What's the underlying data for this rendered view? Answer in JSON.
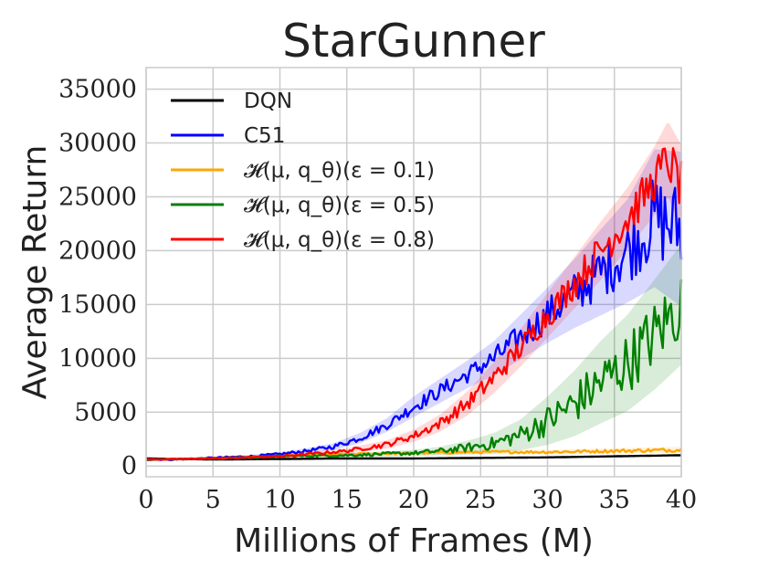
{
  "chart_data": {
    "type": "line",
    "title": "StarGunner",
    "xlabel": "Millions of Frames (M)",
    "ylabel": "Average Return",
    "xlim": [
      0,
      40
    ],
    "ylim": [
      -1000,
      37000
    ],
    "xticks": [
      0,
      5,
      10,
      15,
      20,
      25,
      30,
      35,
      40
    ],
    "yticks": [
      0,
      5000,
      10000,
      15000,
      20000,
      25000,
      30000,
      35000
    ],
    "grid": true,
    "legend_position": "top-left",
    "series": [
      {
        "name": "DQN",
        "color": "#000000",
        "x": [
          0,
          5,
          10,
          15,
          20,
          25,
          30,
          35,
          40
        ],
        "y": [
          700,
          600,
          650,
          700,
          700,
          750,
          800,
          900,
          1000
        ],
        "spread": [
          0,
          0,
          0,
          0,
          0,
          0,
          0,
          0,
          0
        ]
      },
      {
        "name": "C51",
        "color": "#0000ff",
        "x": [
          0,
          2,
          4,
          6,
          8,
          10,
          12,
          14,
          16,
          18,
          20,
          22,
          24,
          26,
          28,
          30,
          32,
          34,
          36,
          38,
          40
        ],
        "y": [
          600,
          600,
          700,
          800,
          900,
          1100,
          1400,
          1800,
          2600,
          3800,
          5500,
          7000,
          8500,
          10000,
          12000,
          14000,
          16000,
          18000,
          20000,
          23000,
          22000
        ],
        "spread": [
          50,
          50,
          60,
          80,
          100,
          120,
          150,
          200,
          300,
          400,
          600,
          700,
          800,
          1000,
          1300,
          1600,
          2000,
          2500,
          3000,
          4000,
          4500
        ]
      },
      {
        "name": "𝓗(μ, q_θ)(ε = 0.1)",
        "color": "#ffa500",
        "x": [
          0,
          5,
          10,
          15,
          20,
          25,
          30,
          35,
          40
        ],
        "y": [
          600,
          700,
          900,
          1100,
          1200,
          1300,
          1300,
          1400,
          1500
        ],
        "spread": [
          30,
          40,
          60,
          80,
          100,
          120,
          130,
          150,
          180
        ]
      },
      {
        "name": "𝓗(μ, q_θ)(ε = 0.5)",
        "color": "#008000",
        "x": [
          0,
          5,
          10,
          15,
          20,
          22,
          24,
          26,
          28,
          30,
          32,
          34,
          36,
          38,
          40
        ],
        "y": [
          600,
          700,
          900,
          1000,
          1200,
          1400,
          1700,
          2100,
          2900,
          4200,
          5800,
          7800,
          9600,
          12200,
          15000
        ],
        "spread": [
          30,
          50,
          80,
          120,
          180,
          250,
          400,
          600,
          900,
          1400,
          1900,
          2400,
          2800,
          3200,
          3500
        ]
      },
      {
        "name": "𝓗(μ, q_θ)(ε = 0.8)",
        "color": "#ff0000",
        "x": [
          0,
          5,
          10,
          15,
          18,
          20,
          22,
          24,
          26,
          28,
          30,
          32,
          34,
          36,
          38,
          39,
          40
        ],
        "y": [
          600,
          700,
          900,
          1400,
          2000,
          2800,
          4000,
          5800,
          8200,
          11000,
          14000,
          17000,
          20000,
          23000,
          26500,
          28500,
          26000
        ],
        "spread": [
          30,
          50,
          80,
          150,
          250,
          350,
          500,
          700,
          900,
          1100,
          1300,
          1500,
          1700,
          1800,
          2000,
          2200,
          2400
        ]
      }
    ]
  }
}
